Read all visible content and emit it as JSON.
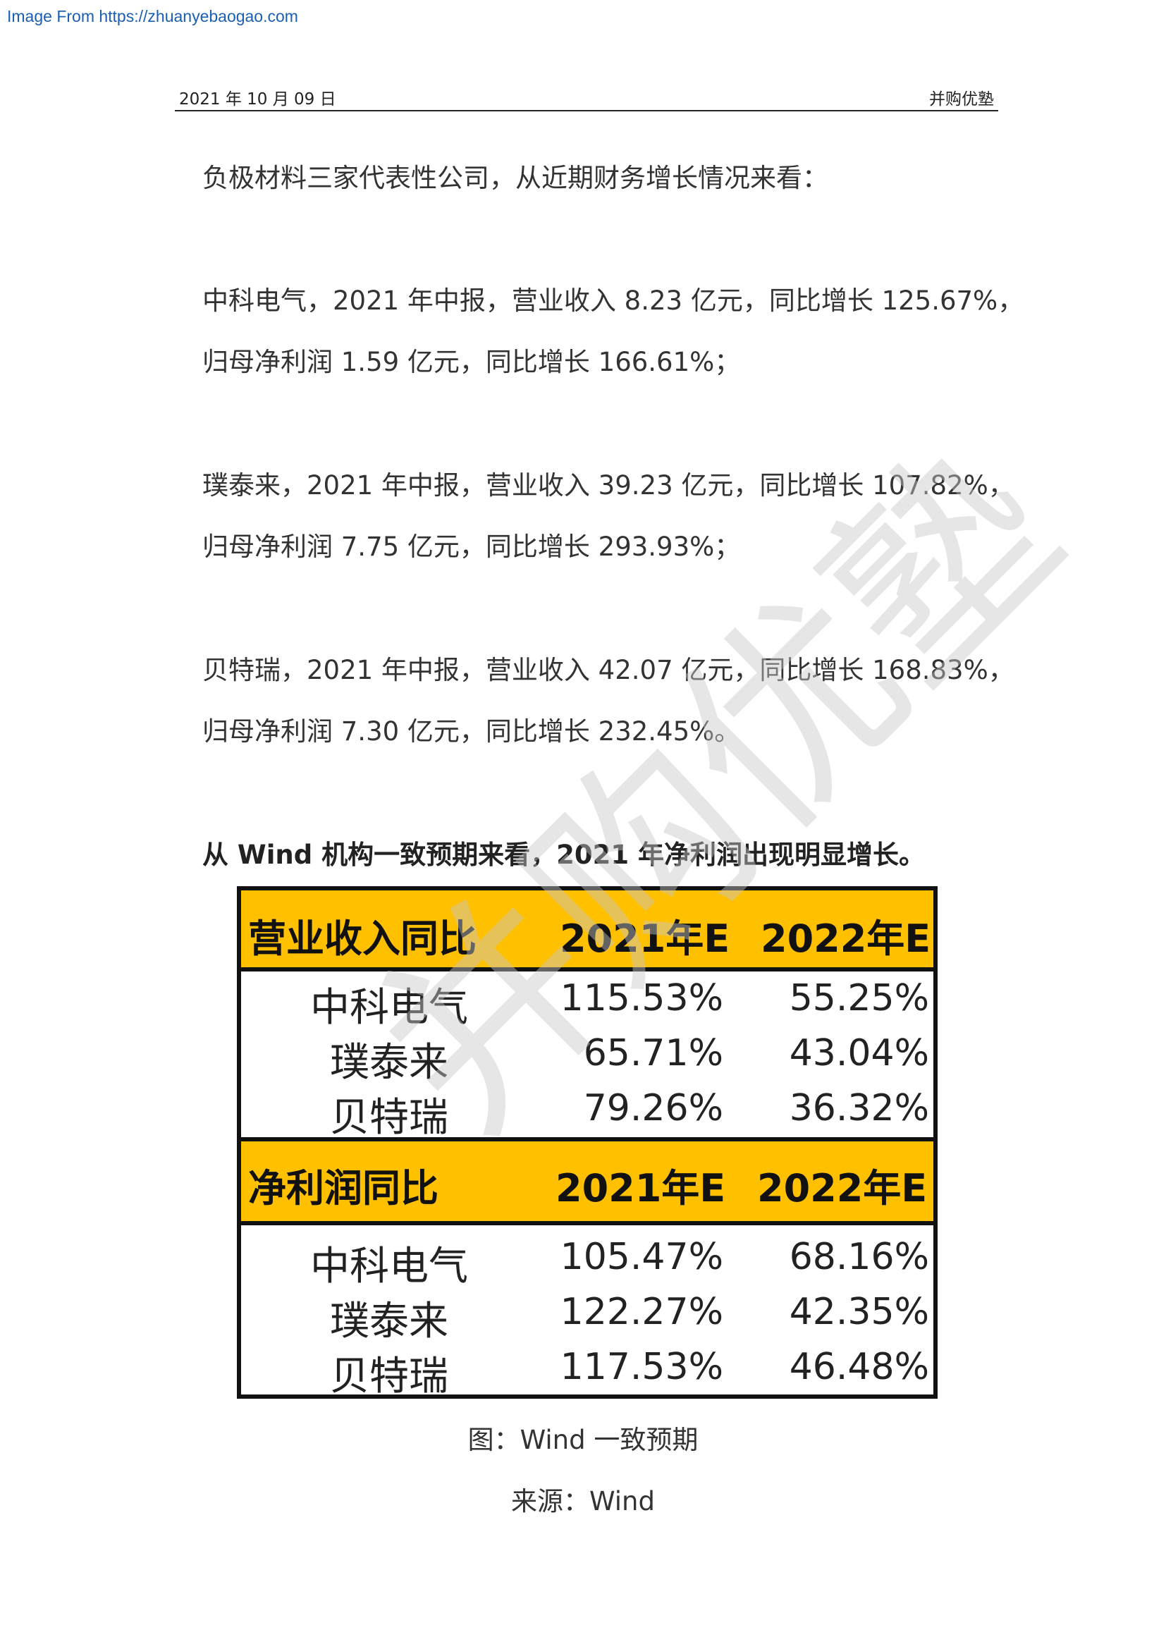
{
  "source_link": "Image From https://zhuanyebaogao.com",
  "header": {
    "date": "2021 年 10 月 09 日",
    "brand": "并购优塾"
  },
  "paragraphs": {
    "intro": "负极材料三家代表性公司，从近期财务增长情况来看：",
    "zhongke_line1": "中科电气，2021 年中报，营业收入 8.23 亿元，同比增长 125.67%，",
    "zhongke_line2": "归母净利润 1.59 亿元，同比增长 166.61%；",
    "putailai_line1": "璞泰来，2021 年中报，营业收入 39.23 亿元，同比增长 107.82%，",
    "putailai_line2": "归母净利润 7.75 亿元，同比增长 293.93%；",
    "btr_line1": "贝特瑞，2021 年中报，营业收入 42.07 亿元，同比增长 168.83%，",
    "btr_line2": "归母净利润 7.30 亿元，同比增长 232.45%。",
    "wind_summary": "从 Wind 机构一致预期来看，2021 年净利润出现明显增长。"
  },
  "watermark": "并购优塾",
  "table": {
    "revenue": {
      "label": "营业收入同比",
      "col1": "2021年E",
      "col2": "2022年E",
      "rows": [
        {
          "name": "中科电气",
          "v1": "115.53%",
          "v2": "55.25%"
        },
        {
          "name": "璞泰来",
          "v1": "65.71%",
          "v2": "43.04%"
        },
        {
          "name": "贝特瑞",
          "v1": "79.26%",
          "v2": "36.32%"
        }
      ]
    },
    "profit": {
      "label": "净利润同比",
      "col1": "2021年E",
      "col2": "2022年E",
      "rows": [
        {
          "name": "中科电气",
          "v1": "105.47%",
          "v2": "68.16%"
        },
        {
          "name": "璞泰来",
          "v1": "122.27%",
          "v2": "42.35%"
        },
        {
          "name": "贝特瑞",
          "v1": "117.53%",
          "v2": "46.48%"
        }
      ]
    }
  },
  "captions": {
    "figure": "图：Wind 一致预期",
    "source": "来源：Wind"
  }
}
